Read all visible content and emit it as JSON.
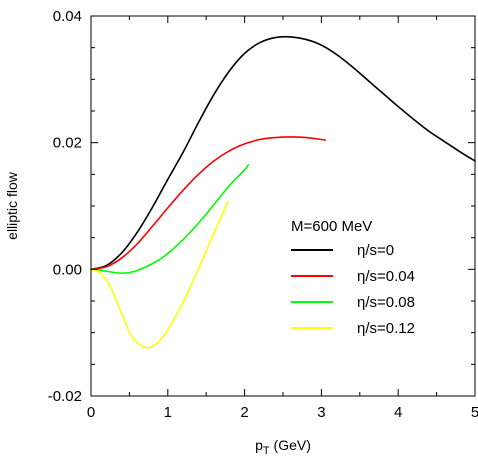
{
  "chart_data": {
    "type": "line",
    "xlabel": "pT (GeV)",
    "ylabel": "elliptic flow",
    "xlim": [
      0,
      5
    ],
    "ylim": [
      -0.02,
      0.04
    ],
    "x_ticks": [
      {
        "value": 0,
        "label": "0"
      },
      {
        "value": 1,
        "label": "1"
      },
      {
        "value": 2,
        "label": "2"
      },
      {
        "value": 3,
        "label": "3"
      },
      {
        "value": 4,
        "label": "4"
      },
      {
        "value": 5,
        "label": "5"
      }
    ],
    "y_ticks": [
      {
        "value": -0.02,
        "label": "-0.02"
      },
      {
        "value": 0.0,
        "label": "0.00"
      },
      {
        "value": 0.02,
        "label": "0.02"
      },
      {
        "value": 0.04,
        "label": "0.04"
      }
    ],
    "x_minor_step": 0.5,
    "y_minor_step": 0.005,
    "grid": false,
    "legend": {
      "title": "M=600 MeV",
      "position": "center-right"
    },
    "series": [
      {
        "name": "η/s=0",
        "color": "#000000",
        "x": [
          0,
          0.2,
          0.4,
          0.6,
          0.8,
          1.0,
          1.2,
          1.4,
          1.6,
          1.8,
          2.0,
          2.2,
          2.4,
          2.6,
          2.8,
          3.0,
          3.2,
          3.4,
          3.6,
          3.8,
          4.0,
          4.2,
          4.4,
          4.6,
          4.8,
          5.0
        ],
        "y": [
          0.0,
          0.0006,
          0.0026,
          0.0058,
          0.0098,
          0.0142,
          0.0185,
          0.0232,
          0.0276,
          0.0313,
          0.0341,
          0.0358,
          0.0366,
          0.0367,
          0.0363,
          0.0354,
          0.0339,
          0.032,
          0.0299,
          0.0278,
          0.0257,
          0.0237,
          0.0218,
          0.0202,
          0.0186,
          0.0171
        ]
      },
      {
        "name": "η/s=0.04",
        "color": "#ff0000",
        "x": [
          0,
          0.2,
          0.4,
          0.6,
          0.8,
          1.0,
          1.2,
          1.4,
          1.6,
          1.8,
          2.0,
          2.2,
          2.4,
          2.6,
          2.8,
          3.0,
          3.05
        ],
        "y": [
          0.0,
          0.0004,
          0.0018,
          0.004,
          0.0068,
          0.0097,
          0.0125,
          0.015,
          0.0171,
          0.0187,
          0.0198,
          0.0205,
          0.0208,
          0.0209,
          0.0208,
          0.0205,
          0.0204
        ]
      },
      {
        "name": "η/s=0.08",
        "color": "#00ff00",
        "x": [
          0,
          0.1,
          0.2,
          0.3,
          0.4,
          0.5,
          0.6,
          0.7,
          0.8,
          0.9,
          1.0,
          1.2,
          1.4,
          1.6,
          1.8,
          2.0,
          2.05
        ],
        "y": [
          0.0,
          -0.0001,
          -0.0003,
          -0.0005,
          -0.0006,
          -0.0005,
          -0.0002,
          0.0003,
          0.0009,
          0.0016,
          0.0025,
          0.0047,
          0.0073,
          0.0102,
          0.0132,
          0.0157,
          0.0165
        ]
      },
      {
        "name": "η/s=0.12",
        "color": "#ffff00",
        "x": [
          0,
          0.1,
          0.2,
          0.3,
          0.4,
          0.5,
          0.6,
          0.7,
          0.75,
          0.8,
          0.9,
          1.0,
          1.1,
          1.2,
          1.3,
          1.4,
          1.5,
          1.6,
          1.7,
          1.78
        ],
        "y": [
          0.0,
          -0.0004,
          -0.0017,
          -0.004,
          -0.007,
          -0.0099,
          -0.0116,
          -0.0123,
          -0.0124,
          -0.0122,
          -0.0112,
          -0.0096,
          -0.0075,
          -0.0052,
          -0.0026,
          0.0001,
          0.0029,
          0.0057,
          0.0084,
          0.0107
        ]
      }
    ]
  }
}
